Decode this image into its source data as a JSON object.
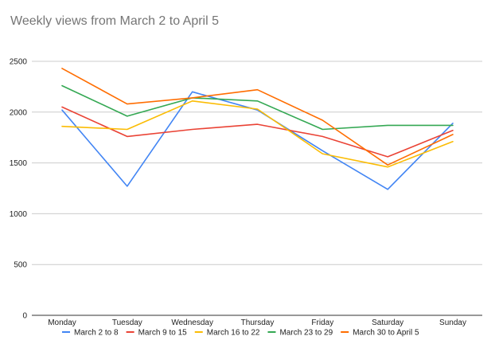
{
  "chart_data": {
    "type": "line",
    "title": "Weekly views from March 2 to April 5",
    "xlabel": "",
    "ylabel": "",
    "categories": [
      "Monday",
      "Tuesday",
      "Wednesday",
      "Thursday",
      "Friday",
      "Saturday",
      "Sunday"
    ],
    "ylim": [
      0,
      2500
    ],
    "yticks": [
      0,
      500,
      1000,
      1500,
      2000,
      2500
    ],
    "grid": true,
    "legend_position": "bottom",
    "series": [
      {
        "name": "March 2 to 8",
        "color": "#4285f4",
        "values": [
          2020,
          1270,
          2200,
          2020,
          1620,
          1240,
          1890
        ]
      },
      {
        "name": "March 9 to 15",
        "color": "#ea4335",
        "values": [
          2050,
          1760,
          1830,
          1880,
          1760,
          1560,
          1820
        ]
      },
      {
        "name": "March 16 to 22",
        "color": "#fbbc04",
        "values": [
          1860,
          1830,
          2110,
          2030,
          1590,
          1460,
          1710
        ]
      },
      {
        "name": "March 23 to 29",
        "color": "#34a853",
        "values": [
          2260,
          1960,
          2140,
          2110,
          1830,
          1870,
          1870
        ]
      },
      {
        "name": "March 30 to April 5",
        "color": "#ff6d01",
        "values": [
          2430,
          2080,
          2140,
          2220,
          1920,
          1480,
          1780
        ]
      }
    ]
  }
}
